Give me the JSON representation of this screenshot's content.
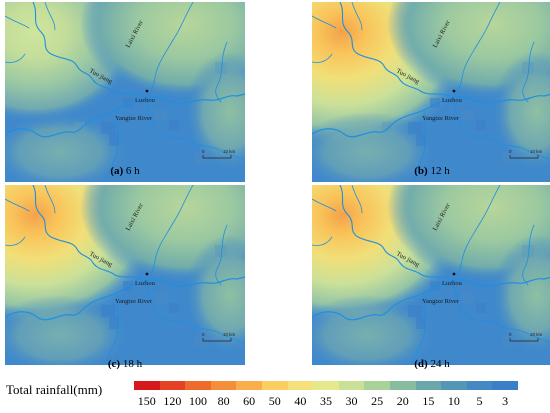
{
  "panels": [
    {
      "id": "a",
      "letter": "(a)",
      "time": "6 h",
      "hot": 0.15
    },
    {
      "id": "b",
      "letter": "(b)",
      "time": "12 h",
      "hot": 0.95
    },
    {
      "id": "c",
      "letter": "(c)",
      "time": "18 h",
      "hot": 0.8
    },
    {
      "id": "d",
      "letter": "(d)",
      "time": "24 h",
      "hot": 0.75
    }
  ],
  "map_labels": {
    "tuo_river": "Tuo jiang",
    "lai_river": "Laixi River",
    "city": "Luzhou",
    "yangtze": "Yangtze River",
    "scale_zero": "0",
    "scale_dist": "10 km"
  },
  "legend": {
    "title": "Total rainfall(mm)",
    "colors": [
      "#d7191c",
      "#e44125",
      "#ee6a2d",
      "#f48e3a",
      "#f9ae4b",
      "#fccd61",
      "#f6e07a",
      "#e4e98d",
      "#c9e196",
      "#a9d29b",
      "#87bd9f",
      "#6aa7aa",
      "#5596b8",
      "#4589c4",
      "#3a7fc8"
    ],
    "labels": [
      "150",
      "120",
      "100",
      "80",
      "60",
      "50",
      "40",
      "35",
      "30",
      "25",
      "20",
      "15",
      "10",
      "5",
      "3"
    ]
  },
  "colors": {
    "river": "#1f8fe0",
    "base_blue": "#3f88cc"
  }
}
